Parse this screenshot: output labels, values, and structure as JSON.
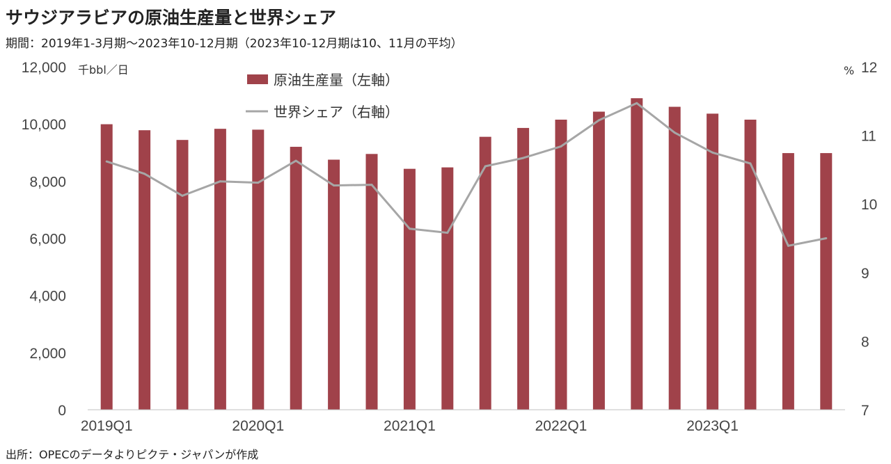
{
  "title": "サウジアラビアの原油生産量と世界シェア",
  "subtitle": "期間：2019年1-3月期～2023年10-12月期（2023年10-12月期は10、11月の平均）",
  "source": "出所：OPECのデータよりピクテ・ジャパンが作成",
  "colors": {
    "bar": "#a0424a",
    "line": "#a6a6a6",
    "axis": "#bfbfbf"
  },
  "chart_data": {
    "type": "bar",
    "categories": [
      "2019Q1",
      "2019Q2",
      "2019Q3",
      "2019Q4",
      "2020Q1",
      "2020Q2",
      "2020Q3",
      "2020Q4",
      "2021Q1",
      "2021Q2",
      "2021Q3",
      "2021Q4",
      "2022Q1",
      "2022Q2",
      "2022Q3",
      "2022Q4",
      "2023Q1",
      "2023Q2",
      "2023Q3",
      "2023Q4"
    ],
    "xtick_labels": [
      "2019Q1",
      "2020Q1",
      "2021Q1",
      "2022Q1",
      "2023Q1"
    ],
    "series": [
      {
        "name": "原油生産量（左軸）",
        "type": "bar",
        "axis": "left",
        "values": [
          9990,
          9780,
          9440,
          9830,
          9800,
          9200,
          8750,
          8950,
          8430,
          8480,
          9550,
          9860,
          10150,
          10430,
          10900,
          10600,
          10360,
          10150,
          8980,
          8980
        ]
      },
      {
        "name": "世界シェア（右軸）",
        "type": "line",
        "axis": "right",
        "values": [
          10.62,
          10.44,
          10.12,
          10.33,
          10.31,
          10.63,
          10.27,
          10.28,
          9.64,
          9.58,
          10.55,
          10.67,
          10.84,
          11.22,
          11.47,
          11.04,
          10.75,
          10.59,
          9.39,
          9.5
        ]
      }
    ],
    "y_left": {
      "ylim": [
        0,
        12000
      ],
      "ticks": [
        "0",
        "2,000",
        "4,000",
        "6,000",
        "8,000",
        "10,000",
        "12,000"
      ],
      "unit": "千bbl／日"
    },
    "y_right": {
      "ylim": [
        7,
        12
      ],
      "ticks": [
        "7",
        "8",
        "9",
        "10",
        "11",
        "12"
      ],
      "unit": "%"
    },
    "legend": "top-center",
    "grid": false
  }
}
